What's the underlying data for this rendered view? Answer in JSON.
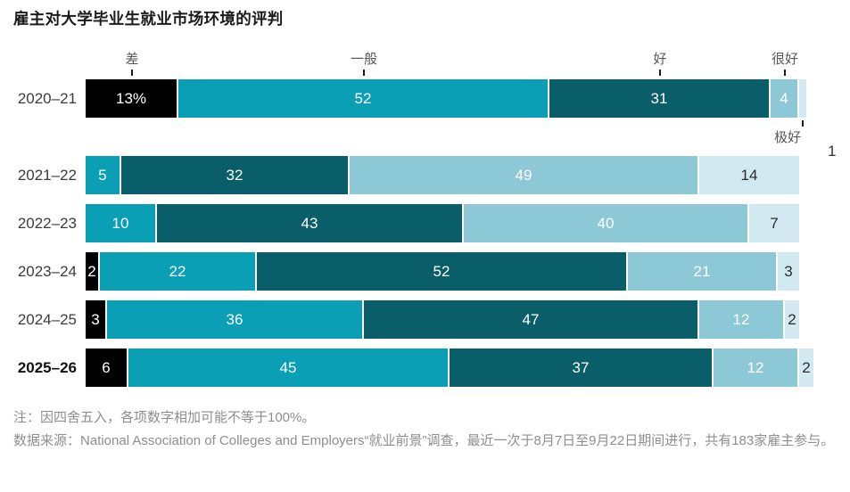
{
  "title": "雇主对大学毕业生就业市场环境的评判",
  "chart_data": {
    "type": "bar",
    "variant": "horizontal-stacked",
    "unit": "%",
    "xlim": [
      0,
      100
    ],
    "grid": false,
    "legend_position": "rating-labels-with-ticks-around-first-bar",
    "categories": [
      "2020–21",
      "2021–22",
      "2022–23",
      "2023–24",
      "2024–25",
      "2025–26"
    ],
    "bold_category": "2025–26",
    "series": [
      {
        "name": "差",
        "color": "#000000",
        "label_color": "#ffffff",
        "values": [
          13,
          0,
          0,
          2,
          3,
          6
        ]
      },
      {
        "name": "一般",
        "color": "#0b9fb5",
        "label_color": "#ffffff",
        "values": [
          52,
          5,
          10,
          22,
          36,
          45
        ]
      },
      {
        "name": "好",
        "color": "#095e69",
        "label_color": "#ffffff",
        "values": [
          31,
          32,
          43,
          52,
          47,
          37
        ]
      },
      {
        "name": "很好",
        "color": "#8cc8d6",
        "label_color": "#ffffff",
        "values": [
          4,
          49,
          40,
          21,
          12,
          12
        ]
      },
      {
        "name": "极好",
        "color": "#d2e9f2",
        "label_color": "#2b2b2b",
        "values": [
          1,
          14,
          7,
          3,
          2,
          2
        ]
      }
    ],
    "first_row_first_label_suffix": "%",
    "outside_value_label": "1"
  },
  "notes": {
    "rounding_note": "注：因四舍五入，各项数字相加可能不等于100%。",
    "source_note": "数据来源：National Association of Colleges and Employers“就业前景”调查，最近一次于8月7日至9月22日期间进行，共有183家雇主参与。"
  }
}
